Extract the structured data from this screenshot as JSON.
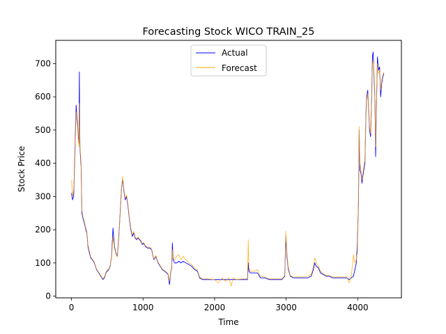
{
  "chart_data": {
    "type": "line",
    "title": "Forecasting Stock WICO TRAIN_25",
    "xlabel": "Time",
    "ylabel": "Stock Price",
    "xlim": [
      -220,
      4610
    ],
    "ylim": [
      -5,
      770
    ],
    "xticks": [
      0,
      1000,
      2000,
      3000,
      4000
    ],
    "yticks": [
      0,
      100,
      200,
      300,
      400,
      500,
      600,
      700
    ],
    "grid": false,
    "legend_position": "top-center",
    "series": [
      {
        "name": "Actual",
        "color": "#0000ff",
        "points": [
          [
            0,
            310
          ],
          [
            15,
            290
          ],
          [
            30,
            300
          ],
          [
            45,
            410
          ],
          [
            55,
            500
          ],
          [
            65,
            575
          ],
          [
            75,
            540
          ],
          [
            85,
            520
          ],
          [
            95,
            480
          ],
          [
            105,
            460
          ],
          [
            110,
            675
          ],
          [
            118,
            450
          ],
          [
            125,
            420
          ],
          [
            135,
            390
          ],
          [
            145,
            250
          ],
          [
            160,
            235
          ],
          [
            180,
            220
          ],
          [
            200,
            200
          ],
          [
            215,
            190
          ],
          [
            230,
            150
          ],
          [
            250,
            130
          ],
          [
            270,
            115
          ],
          [
            290,
            110
          ],
          [
            320,
            100
          ],
          [
            350,
            80
          ],
          [
            380,
            70
          ],
          [
            410,
            60
          ],
          [
            440,
            50
          ],
          [
            460,
            55
          ],
          [
            480,
            70
          ],
          [
            500,
            75
          ],
          [
            520,
            80
          ],
          [
            540,
            90
          ],
          [
            560,
            120
          ],
          [
            580,
            205
          ],
          [
            600,
            150
          ],
          [
            620,
            130
          ],
          [
            640,
            120
          ],
          [
            660,
            175
          ],
          [
            680,
            250
          ],
          [
            700,
            330
          ],
          [
            715,
            350
          ],
          [
            730,
            320
          ],
          [
            750,
            290
          ],
          [
            770,
            300
          ],
          [
            790,
            270
          ],
          [
            810,
            230
          ],
          [
            830,
            200
          ],
          [
            850,
            180
          ],
          [
            870,
            190
          ],
          [
            890,
            175
          ],
          [
            910,
            170
          ],
          [
            930,
            175
          ],
          [
            950,
            170
          ],
          [
            970,
            165
          ],
          [
            990,
            155
          ],
          [
            1010,
            160
          ],
          [
            1030,
            150
          ],
          [
            1060,
            145
          ],
          [
            1090,
            145
          ],
          [
            1120,
            140
          ],
          [
            1150,
            110
          ],
          [
            1180,
            120
          ],
          [
            1210,
            100
          ],
          [
            1240,
            90
          ],
          [
            1270,
            80
          ],
          [
            1300,
            75
          ],
          [
            1330,
            70
          ],
          [
            1350,
            65
          ],
          [
            1370,
            35
          ],
          [
            1385,
            70
          ],
          [
            1400,
            85
          ],
          [
            1410,
            160
          ],
          [
            1420,
            110
          ],
          [
            1440,
            100
          ],
          [
            1470,
            100
          ],
          [
            1500,
            105
          ],
          [
            1530,
            100
          ],
          [
            1560,
            105
          ],
          [
            1600,
            100
          ],
          [
            1640,
            95
          ],
          [
            1680,
            90
          ],
          [
            1720,
            80
          ],
          [
            1760,
            75
          ],
          [
            1790,
            55
          ],
          [
            1830,
            50
          ],
          [
            1900,
            50
          ],
          [
            2000,
            50
          ],
          [
            2100,
            50
          ],
          [
            2200,
            50
          ],
          [
            2300,
            50
          ],
          [
            2400,
            50
          ],
          [
            2460,
            50
          ],
          [
            2470,
            100
          ],
          [
            2480,
            75
          ],
          [
            2500,
            70
          ],
          [
            2550,
            70
          ],
          [
            2600,
            70
          ],
          [
            2640,
            55
          ],
          [
            2700,
            55
          ],
          [
            2760,
            50
          ],
          [
            2820,
            50
          ],
          [
            2880,
            50
          ],
          [
            2940,
            50
          ],
          [
            2980,
            60
          ],
          [
            2995,
            180
          ],
          [
            3010,
            120
          ],
          [
            3030,
            80
          ],
          [
            3060,
            60
          ],
          [
            3100,
            55
          ],
          [
            3150,
            55
          ],
          [
            3200,
            55
          ],
          [
            3250,
            55
          ],
          [
            3300,
            55
          ],
          [
            3350,
            60
          ],
          [
            3380,
            80
          ],
          [
            3400,
            100
          ],
          [
            3420,
            90
          ],
          [
            3450,
            85
          ],
          [
            3480,
            70
          ],
          [
            3520,
            65
          ],
          [
            3560,
            60
          ],
          [
            3600,
            60
          ],
          [
            3650,
            55
          ],
          [
            3700,
            55
          ],
          [
            3750,
            55
          ],
          [
            3800,
            55
          ],
          [
            3850,
            55
          ],
          [
            3880,
            50
          ],
          [
            3910,
            55
          ],
          [
            3940,
            60
          ],
          [
            3960,
            80
          ],
          [
            3980,
            100
          ],
          [
            3995,
            160
          ],
          [
            4010,
            280
          ],
          [
            4020,
            500
          ],
          [
            4030,
            380
          ],
          [
            4045,
            370
          ],
          [
            4060,
            340
          ],
          [
            4070,
            360
          ],
          [
            4085,
            380
          ],
          [
            4100,
            400
          ],
          [
            4115,
            550
          ],
          [
            4125,
            600
          ],
          [
            4140,
            620
          ],
          [
            4155,
            550
          ],
          [
            4165,
            500
          ],
          [
            4180,
            480
          ],
          [
            4195,
            600
          ],
          [
            4205,
            720
          ],
          [
            4215,
            735
          ],
          [
            4225,
            670
          ],
          [
            4240,
            600
          ],
          [
            4250,
            420
          ],
          [
            4260,
            550
          ],
          [
            4275,
            720
          ],
          [
            4290,
            680
          ],
          [
            4305,
            690
          ],
          [
            4320,
            600
          ],
          [
            4335,
            640
          ],
          [
            4350,
            660
          ],
          [
            4365,
            670
          ]
        ]
      },
      {
        "name": "Forecast",
        "color": "#ffa500",
        "points": [
          [
            0,
            350
          ],
          [
            15,
            300
          ],
          [
            30,
            320
          ],
          [
            45,
            390
          ],
          [
            55,
            480
          ],
          [
            65,
            555
          ],
          [
            75,
            530
          ],
          [
            85,
            510
          ],
          [
            95,
            470
          ],
          [
            105,
            450
          ],
          [
            110,
            580
          ],
          [
            118,
            460
          ],
          [
            125,
            430
          ],
          [
            135,
            400
          ],
          [
            145,
            260
          ],
          [
            160,
            240
          ],
          [
            180,
            225
          ],
          [
            200,
            205
          ],
          [
            215,
            195
          ],
          [
            230,
            155
          ],
          [
            250,
            135
          ],
          [
            270,
            118
          ],
          [
            290,
            112
          ],
          [
            320,
            102
          ],
          [
            350,
            82
          ],
          [
            380,
            72
          ],
          [
            410,
            62
          ],
          [
            440,
            52
          ],
          [
            460,
            58
          ],
          [
            480,
            72
          ],
          [
            500,
            78
          ],
          [
            520,
            82
          ],
          [
            540,
            92
          ],
          [
            560,
            118
          ],
          [
            580,
            180
          ],
          [
            600,
            145
          ],
          [
            620,
            128
          ],
          [
            640,
            118
          ],
          [
            660,
            170
          ],
          [
            680,
            245
          ],
          [
            700,
            325
          ],
          [
            715,
            360
          ],
          [
            730,
            325
          ],
          [
            750,
            295
          ],
          [
            770,
            305
          ],
          [
            790,
            275
          ],
          [
            810,
            235
          ],
          [
            830,
            205
          ],
          [
            850,
            185
          ],
          [
            870,
            195
          ],
          [
            890,
            178
          ],
          [
            910,
            172
          ],
          [
            930,
            178
          ],
          [
            950,
            172
          ],
          [
            970,
            168
          ],
          [
            990,
            158
          ],
          [
            1010,
            162
          ],
          [
            1030,
            152
          ],
          [
            1060,
            148
          ],
          [
            1090,
            148
          ],
          [
            1120,
            142
          ],
          [
            1150,
            112
          ],
          [
            1180,
            122
          ],
          [
            1210,
            102
          ],
          [
            1240,
            92
          ],
          [
            1270,
            82
          ],
          [
            1300,
            77
          ],
          [
            1330,
            72
          ],
          [
            1350,
            67
          ],
          [
            1370,
            45
          ],
          [
            1385,
            72
          ],
          [
            1400,
            88
          ],
          [
            1410,
            140
          ],
          [
            1420,
            115
          ],
          [
            1440,
            110
          ],
          [
            1470,
            120
          ],
          [
            1500,
            125
          ],
          [
            1530,
            110
          ],
          [
            1560,
            120
          ],
          [
            1600,
            110
          ],
          [
            1640,
            100
          ],
          [
            1680,
            95
          ],
          [
            1720,
            85
          ],
          [
            1760,
            78
          ],
          [
            1790,
            58
          ],
          [
            1830,
            52
          ],
          [
            1900,
            52
          ],
          [
            2000,
            50
          ],
          [
            2050,
            40
          ],
          [
            2100,
            55
          ],
          [
            2150,
            45
          ],
          [
            2200,
            55
          ],
          [
            2230,
            30
          ],
          [
            2260,
            55
          ],
          [
            2300,
            50
          ],
          [
            2400,
            52
          ],
          [
            2460,
            52
          ],
          [
            2470,
            170
          ],
          [
            2480,
            85
          ],
          [
            2500,
            75
          ],
          [
            2550,
            75
          ],
          [
            2600,
            80
          ],
          [
            2640,
            60
          ],
          [
            2700,
            58
          ],
          [
            2760,
            52
          ],
          [
            2820,
            52
          ],
          [
            2880,
            52
          ],
          [
            2940,
            52
          ],
          [
            2980,
            62
          ],
          [
            2995,
            195
          ],
          [
            3010,
            130
          ],
          [
            3030,
            85
          ],
          [
            3060,
            62
          ],
          [
            3100,
            58
          ],
          [
            3150,
            58
          ],
          [
            3200,
            58
          ],
          [
            3250,
            58
          ],
          [
            3300,
            60
          ],
          [
            3350,
            65
          ],
          [
            3380,
            90
          ],
          [
            3400,
            115
          ],
          [
            3420,
            100
          ],
          [
            3450,
            90
          ],
          [
            3480,
            75
          ],
          [
            3520,
            68
          ],
          [
            3560,
            62
          ],
          [
            3600,
            62
          ],
          [
            3650,
            58
          ],
          [
            3700,
            58
          ],
          [
            3750,
            58
          ],
          [
            3800,
            58
          ],
          [
            3850,
            58
          ],
          [
            3880,
            40
          ],
          [
            3910,
            60
          ],
          [
            3940,
            125
          ],
          [
            3960,
            100
          ],
          [
            3980,
            110
          ],
          [
            3995,
            130
          ],
          [
            4010,
            300
          ],
          [
            4020,
            510
          ],
          [
            4030,
            400
          ],
          [
            4045,
            380
          ],
          [
            4060,
            350
          ],
          [
            4070,
            370
          ],
          [
            4085,
            390
          ],
          [
            4100,
            410
          ],
          [
            4115,
            540
          ],
          [
            4125,
            590
          ],
          [
            4140,
            610
          ],
          [
            4155,
            560
          ],
          [
            4165,
            510
          ],
          [
            4180,
            490
          ],
          [
            4195,
            590
          ],
          [
            4205,
            700
          ],
          [
            4215,
            710
          ],
          [
            4225,
            680
          ],
          [
            4240,
            610
          ],
          [
            4250,
            450
          ],
          [
            4260,
            560
          ],
          [
            4275,
            700
          ],
          [
            4290,
            670
          ],
          [
            4305,
            680
          ],
          [
            4320,
            620
          ],
          [
            4335,
            650
          ],
          [
            4350,
            665
          ],
          [
            4365,
            675
          ]
        ]
      }
    ]
  }
}
